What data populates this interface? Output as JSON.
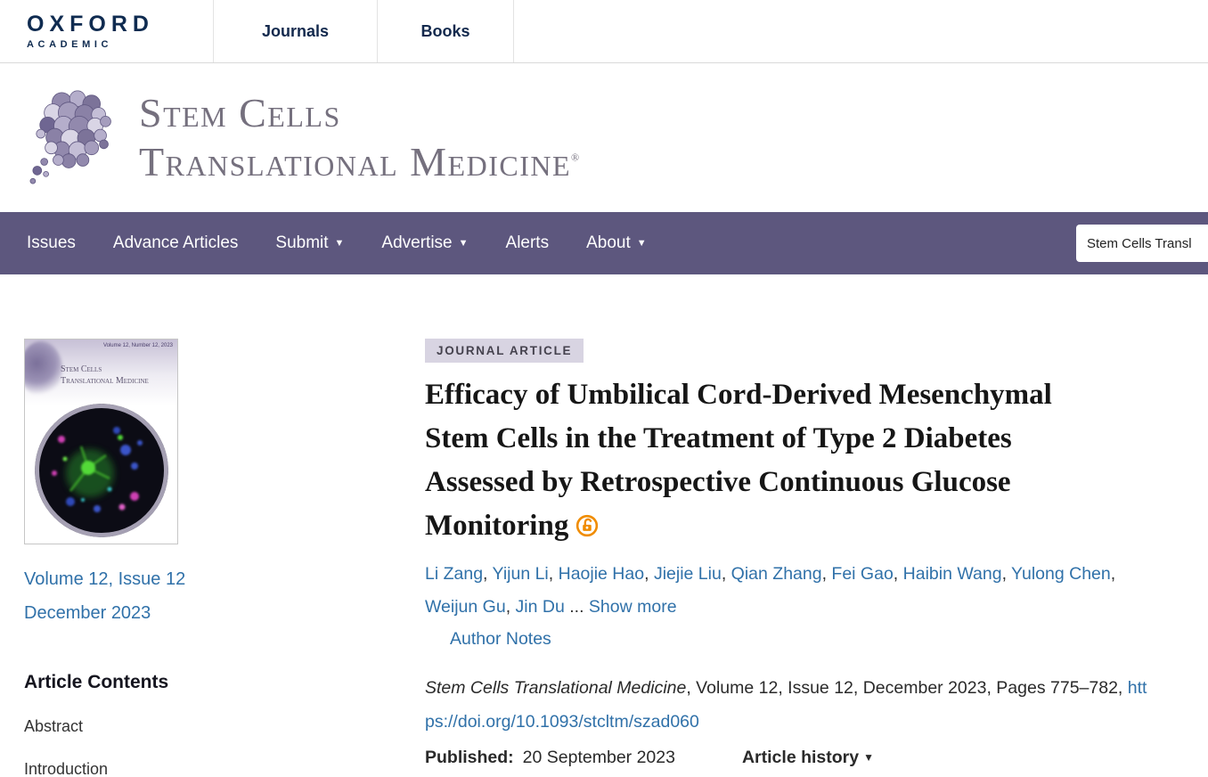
{
  "colors": {
    "nav_purple": "#5d577e",
    "link_blue": "#3071a9",
    "open_access_orange": "#f08c00",
    "badge_bg": "#d8d4e2",
    "oxford_navy": "#0f2b50"
  },
  "header": {
    "logo_line1": "OXFORD",
    "logo_line2": "ACADEMIC",
    "tabs": [
      {
        "label": "Journals"
      },
      {
        "label": "Books"
      }
    ]
  },
  "banner": {
    "title_line1": "Stem Cells",
    "title_line2": "Translational Medicine",
    "registered_mark": "®"
  },
  "nav": {
    "items": [
      {
        "label": "Issues"
      },
      {
        "label": "Advance Articles"
      },
      {
        "label": "Submit"
      },
      {
        "label": "Advertise"
      },
      {
        "label": "Alerts"
      },
      {
        "label": "About"
      }
    ],
    "search_value": "Stem Cells Transl"
  },
  "sidebar": {
    "cover": {
      "issue_info": "Volume 12, Number 12, 2023",
      "title_line1": "Stem Cells",
      "title_line2": "Translational Medicine"
    },
    "volume_link": "Volume 12, Issue 12",
    "date_link": "December 2023",
    "contents_heading": "Article Contents",
    "toc": [
      "Abstract",
      "Introduction"
    ]
  },
  "article": {
    "badge": "JOURNAL ARTICLE",
    "title": "Efficacy of Umbilical Cord-Derived Mesenchymal Stem Cells in the Treatment of Type 2 Diabetes Assessed by Retrospective Continuous Glucose Monitoring",
    "authors": [
      "Li Zang",
      "Yijun Li",
      "Haojie Hao",
      "Jiejie Liu",
      "Qian Zhang",
      "Fei Gao",
      "Haibin Wang",
      "Yulong Chen",
      "Weijun Gu",
      "Jin Du"
    ],
    "ellipsis": "...",
    "show_more_label": "Show more",
    "author_notes_label": "Author Notes",
    "citation_journal": "Stem Cells Translational Medicine",
    "citation_rest": ", Volume 12, Issue 12, December 2023, Pages 775–782,",
    "doi_label": "https://doi.org/10.1093/stcltm/szad060",
    "published_label": "Published:",
    "published_date": "20 September 2023",
    "history_label": "Article history"
  }
}
